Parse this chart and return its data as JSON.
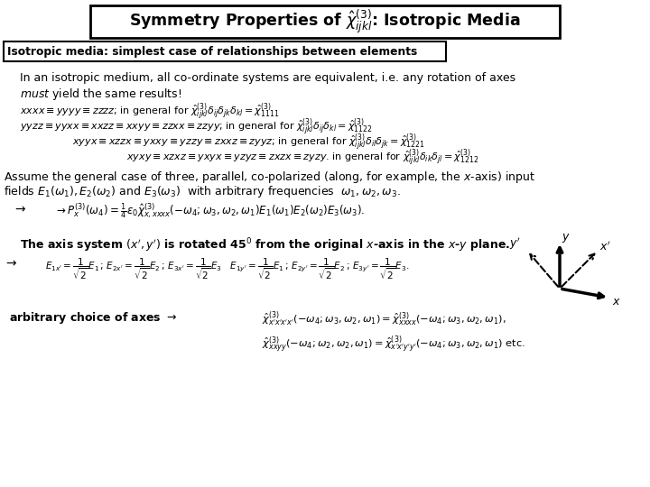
{
  "bg_color": "#ffffff",
  "fig_width": 7.2,
  "fig_height": 5.4,
  "dpi": 100
}
